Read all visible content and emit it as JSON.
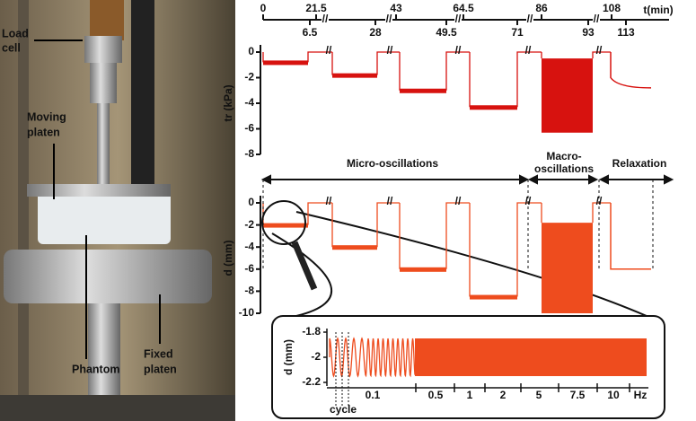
{
  "photo": {
    "labels": {
      "load_cell": [
        "Load",
        "cell"
      ],
      "moving_platen": [
        "Moving",
        "platen"
      ],
      "phantom": "Phantom",
      "fixed_platen": [
        "Fixed",
        "platen"
      ]
    }
  },
  "time_axis": {
    "unit": "t(min)",
    "top_ticks": [
      0,
      21.5,
      43,
      64.5,
      86,
      108
    ],
    "bottom_ticks": [
      6.5,
      28,
      49.5,
      71,
      93,
      113
    ]
  },
  "force_plot": {
    "ylabel": "tr (kPa)",
    "ylim": [
      -8,
      0
    ],
    "yticks": [
      0,
      -2,
      -4,
      -6,
      -8
    ],
    "step_levels": [
      -0.8,
      -1.8,
      -3,
      -4.3
    ],
    "macro_range": [
      -0.5,
      -6.3
    ],
    "relax_range": [
      -2,
      -2.8
    ],
    "color": "#d7120f"
  },
  "phases": {
    "micro": "Micro-oscillations",
    "macro": [
      "Macro-",
      "oscillations"
    ],
    "relaxation": "Relaxation"
  },
  "displacement_plot": {
    "ylabel": "d (mm)",
    "ylim": [
      -10,
      0
    ],
    "yticks": [
      0,
      -2,
      -4,
      -6,
      -8,
      -10
    ],
    "step_levels": [
      -2,
      -4,
      -6,
      -8.5
    ],
    "macro_range": [
      -1.8,
      -10
    ],
    "relax_level": -6,
    "color": "#ee4c1e"
  },
  "inset": {
    "ylabel": "d (mm)",
    "ylim": [
      -2.2,
      -1.8
    ],
    "yticks": [
      -1.8,
      -2,
      -2.2
    ],
    "xlabels": [
      "0.1",
      "0.5",
      "1",
      "2",
      "5",
      "7.5",
      "10",
      "Hz"
    ],
    "cycle_label": "cycle",
    "color": "#ee4c1e"
  }
}
